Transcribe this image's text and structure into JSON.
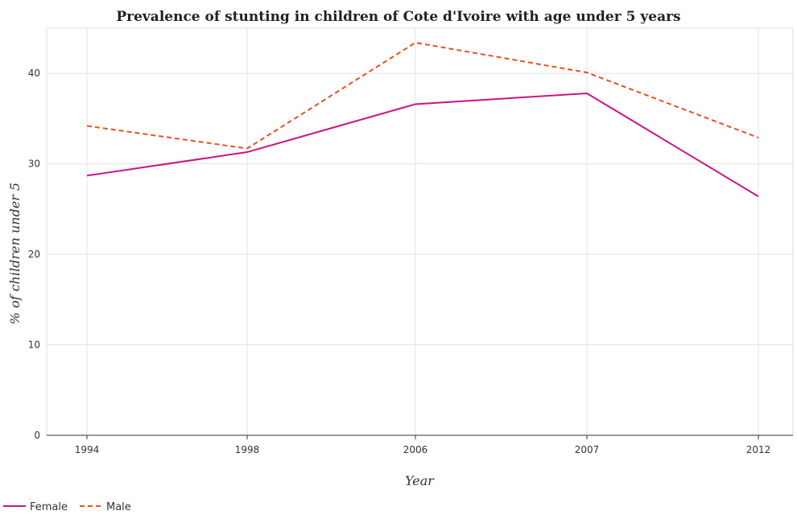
{
  "chart_data": {
    "type": "line",
    "title": "Prevalence of stunting in children of Cote d'Ivoire with age under 5 years",
    "xlabel": "Year",
    "ylabel": "% of children under 5",
    "categories": [
      "1994",
      "1998",
      "2006",
      "2007",
      "2012"
    ],
    "yticks": [
      "0",
      "10",
      "20",
      "30",
      "40"
    ],
    "ylim": [
      0,
      45
    ],
    "grid": true,
    "legend_position": "bottom-left",
    "series": [
      {
        "name": "Female",
        "values": [
          28.7,
          31.3,
          36.6,
          37.8,
          26.4
        ],
        "color": "#c71585",
        "dash": "solid"
      },
      {
        "name": "Male",
        "values": [
          34.2,
          31.7,
          43.4,
          40.1,
          32.9
        ],
        "color": "#e8501e",
        "dash": "dashed"
      }
    ]
  }
}
